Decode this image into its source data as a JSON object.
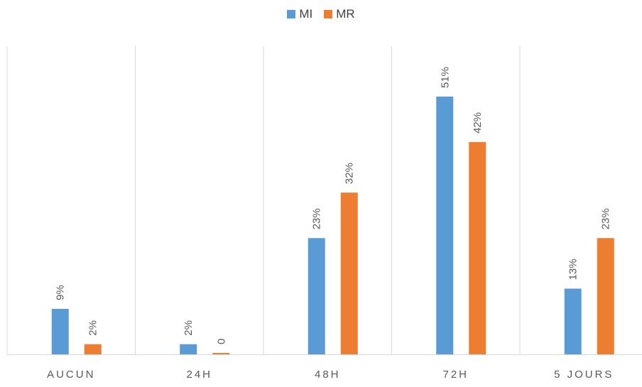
{
  "chart_data": {
    "type": "bar",
    "categories": [
      "AUCUN",
      "24H",
      "48H",
      "72H",
      "5 JOURS"
    ],
    "series": [
      {
        "name": "MI",
        "color": "#5B9BD5",
        "values": [
          9,
          2,
          23,
          51,
          13
        ],
        "labels": [
          "9%",
          "2%",
          "23%",
          "51%",
          "13%"
        ]
      },
      {
        "name": "MR",
        "color": "#ED7D31",
        "values": [
          2,
          0,
          32,
          42,
          23
        ],
        "labels": [
          "2%",
          "0",
          "32%",
          "42%",
          "23%"
        ]
      }
    ],
    "ylim": [
      0,
      51
    ],
    "grid": "vertical category separators",
    "legend_position": "top-center",
    "data_labels": "rotated vertical"
  }
}
